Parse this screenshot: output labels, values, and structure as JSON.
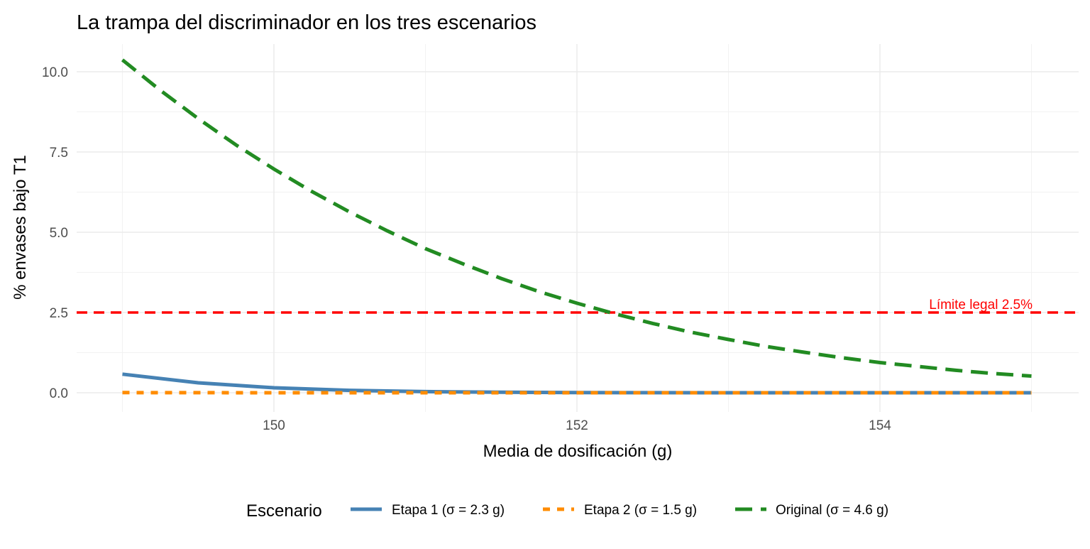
{
  "chart_data": {
    "type": "line",
    "title": "La trampa del discriminador en los tres escenarios",
    "xlabel": "Media de dosificación (g)",
    "ylabel": "% envases bajo T1",
    "xlim": [
      148.7,
      155.3
    ],
    "ylim": [
      -0.55,
      10.8
    ],
    "x_ticks": [
      150,
      152,
      154
    ],
    "x_tick_labels": [
      "150",
      "152",
      "154"
    ],
    "y_ticks": [
      0,
      2.5,
      5,
      7.5,
      10
    ],
    "y_tick_labels": [
      "0.0",
      "2.5",
      "5.0",
      "7.5",
      "10.0"
    ],
    "grid": true,
    "legend": {
      "title": "Escenario",
      "position": "bottom"
    },
    "series": [
      {
        "name": "Etapa 1  (σ = 2.3 g)",
        "color": "#4682B4",
        "style": "solid",
        "x": [
          149,
          149.5,
          150,
          150.5,
          151,
          151.5,
          152,
          152.5,
          153,
          153.5,
          154,
          154.5,
          155
        ],
        "values": [
          0.58,
          0.31,
          0.155,
          0.075,
          0.035,
          0.015,
          0.0065,
          0.0026,
          0.001,
          0.0004,
          0.0001,
          0,
          0
        ]
      },
      {
        "name": "Etapa 2  (σ = 1.5 g)",
        "color": "#FF8C00",
        "style": "dashed",
        "x": [
          149,
          150,
          151,
          152,
          153,
          154,
          155
        ],
        "values": [
          0.005,
          0.0003,
          0,
          0,
          0,
          0,
          0
        ]
      },
      {
        "name": "Original (σ = 4.6 g)",
        "color": "#228B22",
        "style": "longdash",
        "x": [
          149,
          149.25,
          149.5,
          149.75,
          150,
          150.25,
          150.5,
          150.75,
          151,
          151.25,
          151.5,
          151.75,
          152,
          152.25,
          152.5,
          152.75,
          153,
          153.25,
          153.5,
          153.75,
          154,
          154.25,
          154.5,
          154.75,
          155
        ],
        "values": [
          10.37,
          9.42,
          8.54,
          7.72,
          6.97,
          6.27,
          5.63,
          5.04,
          4.49,
          4.01,
          3.56,
          3.15,
          2.79,
          2.46,
          2.16,
          1.89,
          1.66,
          1.44,
          1.26,
          1.09,
          0.94,
          0.82,
          0.7,
          0.6,
          0.52
        ]
      }
    ],
    "reference_line": {
      "y": 2.5,
      "color": "#FF0000",
      "label": "Límite legal 2.5%"
    }
  }
}
